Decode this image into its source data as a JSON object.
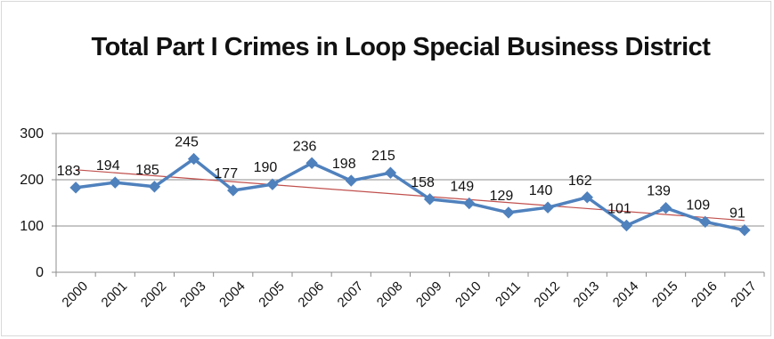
{
  "chart_data": {
    "type": "line",
    "title": "Total Part I Crimes in Loop Special Business District",
    "xlabel": "",
    "ylabel": "",
    "categories": [
      "2000",
      "2001",
      "2002",
      "2003",
      "2004",
      "2005",
      "2006",
      "2007",
      "2008",
      "2009",
      "2010",
      "2011",
      "2012",
      "2013",
      "2014",
      "2015",
      "2016",
      "2017"
    ],
    "series": [
      {
        "values": [
          183,
          194,
          185,
          245,
          177,
          190,
          236,
          198,
          215,
          158,
          149,
          129,
          140,
          162,
          101,
          139,
          109,
          91
        ],
        "color": "#4f81bd",
        "marker": "diamond",
        "data_labels": true
      }
    ],
    "trendline": {
      "type": "linear",
      "color": "#c0504d"
    },
    "ylim": [
      0,
      300
    ],
    "yticks": [
      0,
      100,
      200,
      300
    ],
    "grid": true,
    "legend": "none"
  }
}
